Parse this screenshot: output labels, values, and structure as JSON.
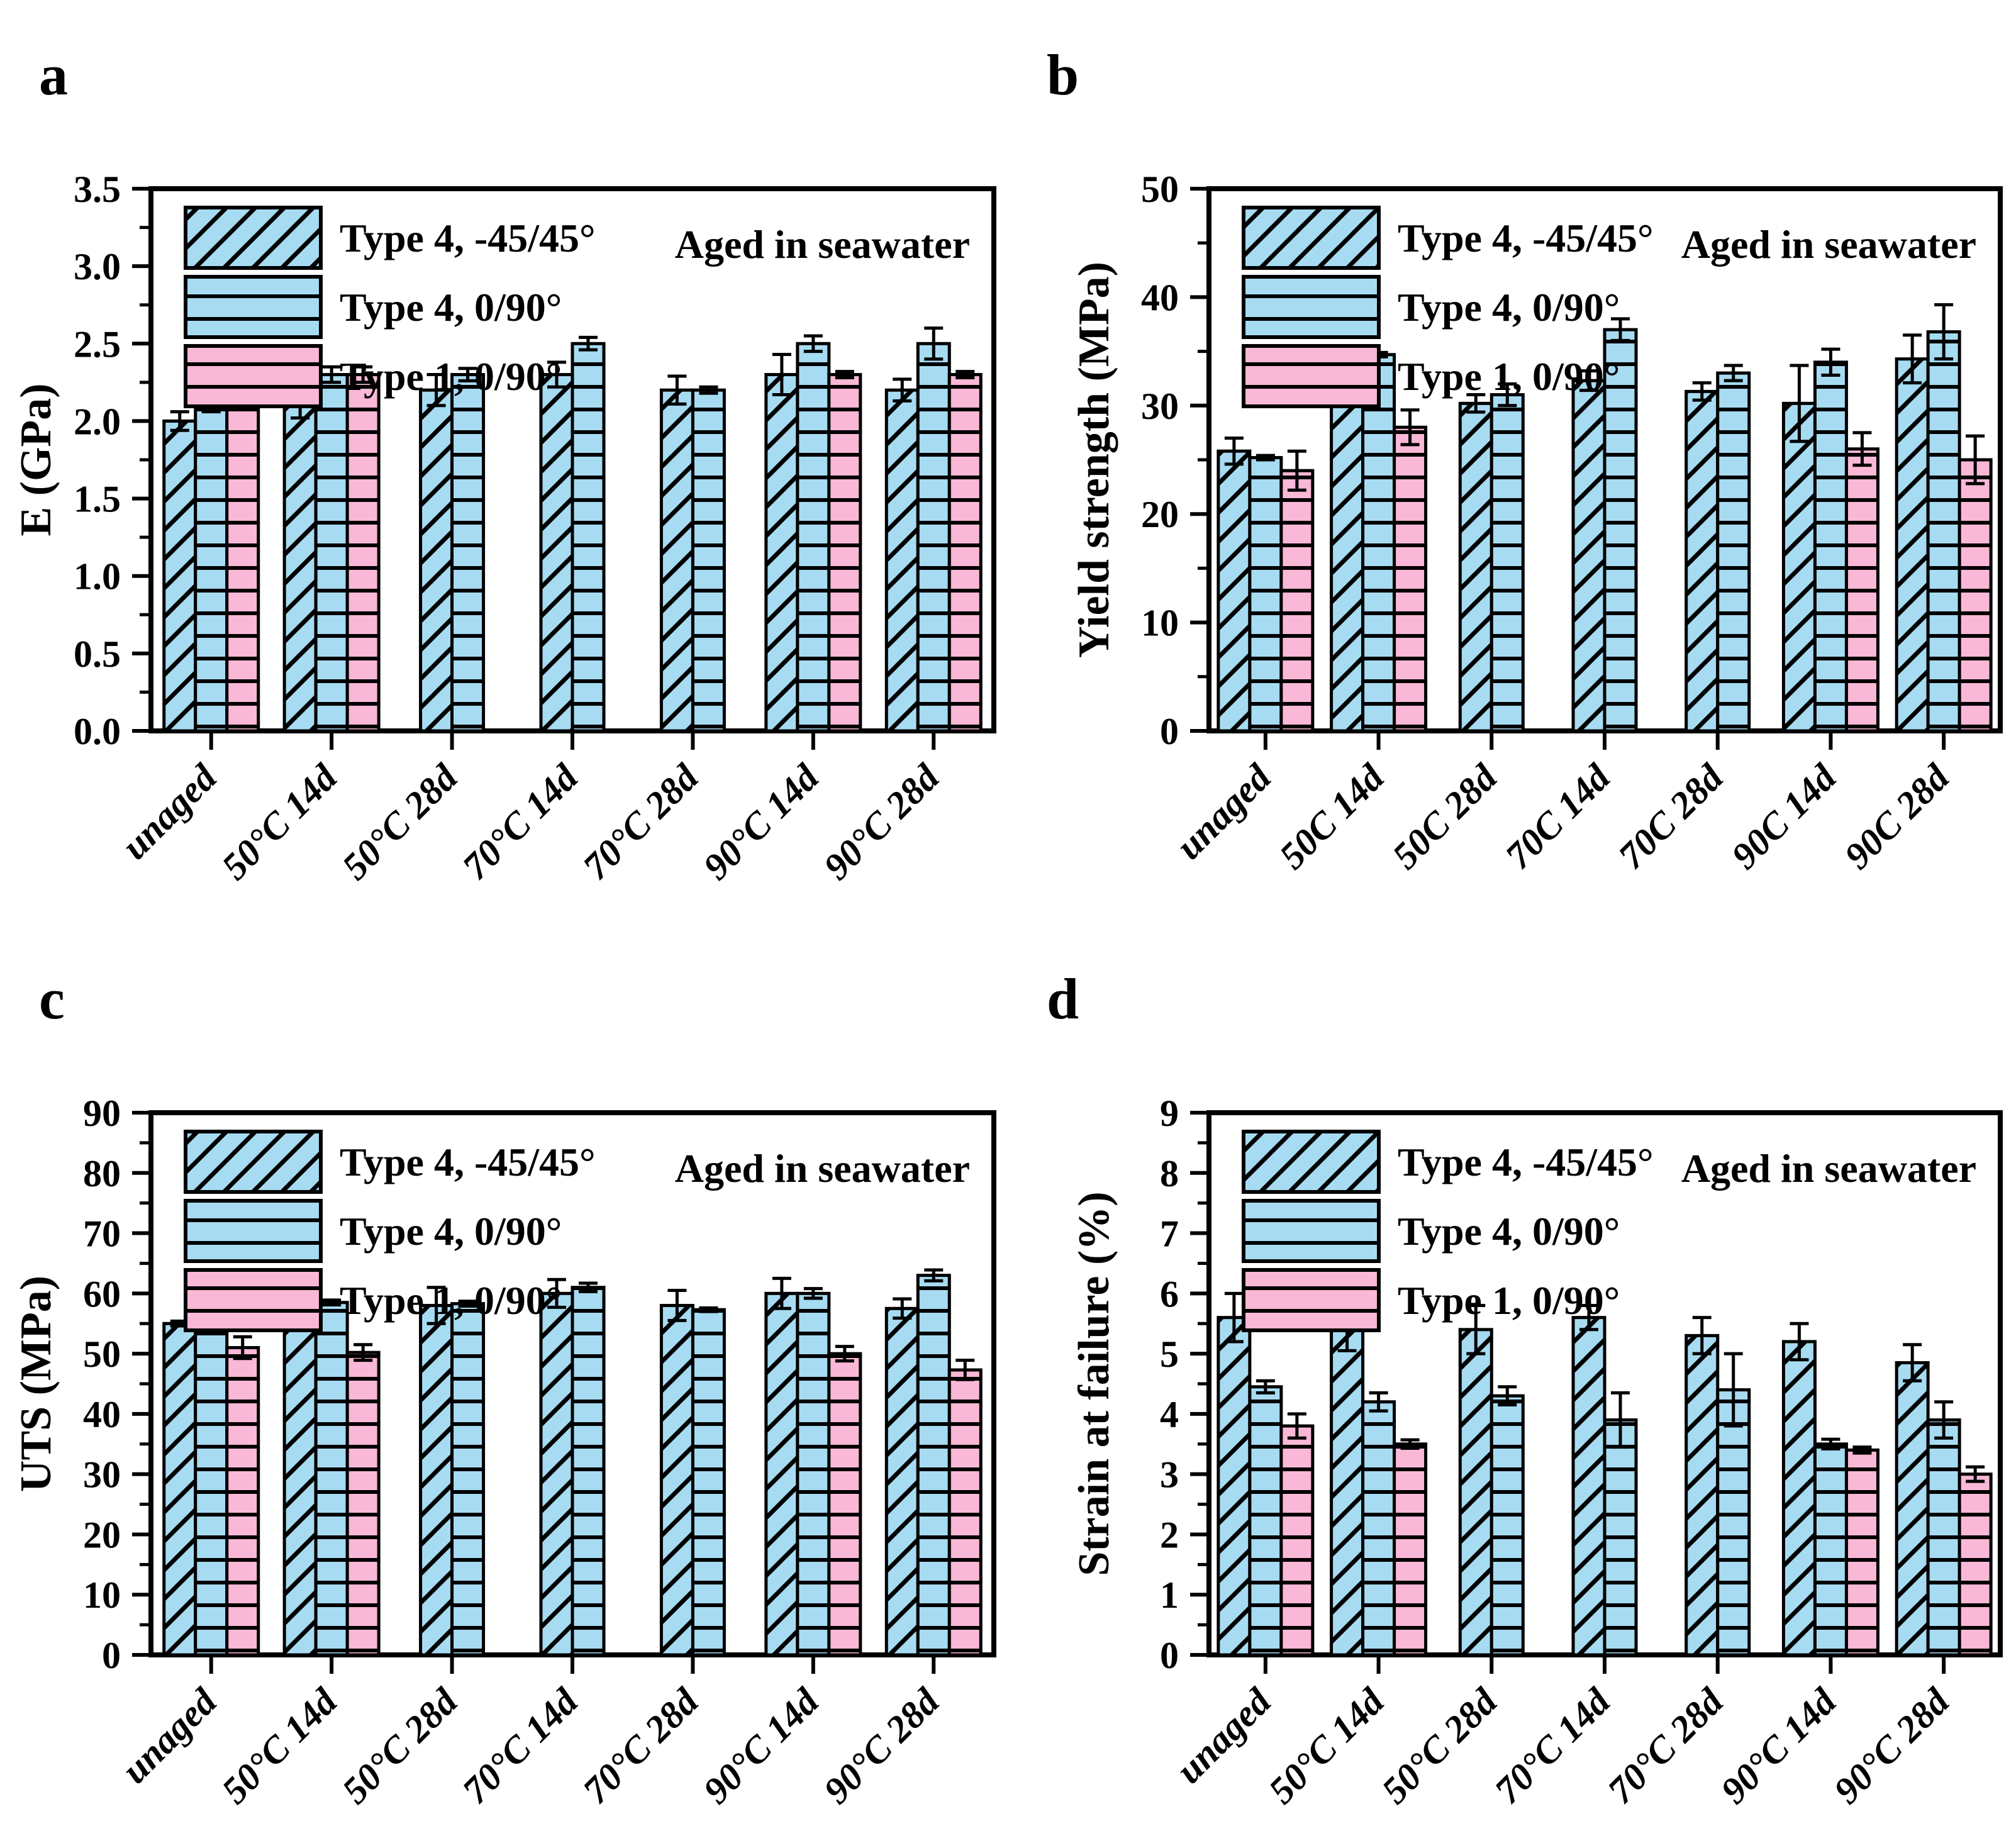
{
  "figure_title": "",
  "annotation": "Aged in seawater",
  "colors": {
    "type4_blue": "#a7dbf2",
    "type1_pink": "#f9b8d6",
    "outline": "#000000"
  },
  "chart_data": [
    {
      "type": "bar",
      "panel_label": "a",
      "ylabel": "E (GPa)",
      "annotation": "Aged in seawater",
      "ylim": [
        0,
        3.5
      ],
      "yticks": [
        0.0,
        0.5,
        1.0,
        1.5,
        2.0,
        2.5,
        3.0,
        3.5
      ],
      "ytick_labels": [
        "0.0",
        "0.5",
        "1.0",
        "1.5",
        "2.0",
        "2.5",
        "3.0",
        "3.5"
      ],
      "yminor_step": 0.25,
      "grid": false,
      "legend_position": "top-left",
      "categories": [
        "unaged",
        "50°C 14d",
        "50°C 28d",
        "70°C 14d",
        "70°C 28d",
        "90°C 14d",
        "90°C 28d"
      ],
      "series": [
        {
          "name": "Type 4, -45/45°",
          "hatch": "diagonal",
          "color": "#a7dbf2",
          "values": [
            2.0,
            2.1,
            2.2,
            2.3,
            2.2,
            2.3,
            2.2
          ],
          "errors": [
            0.06,
            0.08,
            0.1,
            0.08,
            0.09,
            0.13,
            0.07
          ]
        },
        {
          "name": "Type 4, 0/90°",
          "hatch": "horizontal",
          "color": "#a7dbf2",
          "values": [
            2.1,
            2.3,
            2.3,
            2.5,
            2.2,
            2.5,
            2.5
          ],
          "errors": [
            0.04,
            0.05,
            0.04,
            0.04,
            0.02,
            0.05,
            0.1
          ]
        },
        {
          "name": "Type 1, 0/90°",
          "hatch": "horizontal",
          "color": "#f9b8d6",
          "values": [
            2.2,
            2.3,
            null,
            null,
            null,
            2.3,
            2.3
          ],
          "errors": [
            0.03,
            0.05,
            null,
            null,
            null,
            0.02,
            0.02
          ]
        }
      ]
    },
    {
      "type": "bar",
      "panel_label": "b",
      "ylabel": "Yield strength (MPa)",
      "annotation": "Aged in seawater",
      "ylim": [
        0,
        50
      ],
      "yticks": [
        0,
        10,
        20,
        30,
        40,
        50
      ],
      "ytick_labels": [
        "0",
        "10",
        "20",
        "30",
        "40",
        "50"
      ],
      "yminor_step": 5,
      "grid": false,
      "legend_position": "top-left",
      "categories": [
        "unaged",
        "50C 14d",
        "50C 28d",
        "70C 14d",
        "70C 28d",
        "90C 14d",
        "90C 28d"
      ],
      "series": [
        {
          "name": "Type 4, -45/45°",
          "hatch": "diagonal",
          "color": "#a7dbf2",
          "values": [
            25.8,
            31.5,
            30.2,
            32.3,
            31.3,
            30.2,
            34.3
          ],
          "errors": [
            1.2,
            0.7,
            0.8,
            0.9,
            0.8,
            3.5,
            2.2
          ]
        },
        {
          "name": "Type 4, 0/90°",
          "hatch": "horizontal",
          "color": "#a7dbf2",
          "values": [
            25.2,
            34.7,
            31.0,
            37.0,
            33.0,
            34.0,
            36.8
          ],
          "errors": [
            0.2,
            0.2,
            1.0,
            1.0,
            0.7,
            1.2,
            2.5
          ]
        },
        {
          "name": "Type 1, 0/90°",
          "hatch": "horizontal",
          "color": "#f9b8d6",
          "values": [
            24.0,
            28.0,
            null,
            null,
            null,
            26.0,
            25.0
          ],
          "errors": [
            1.8,
            1.6,
            null,
            null,
            null,
            1.5,
            2.2
          ]
        }
      ]
    },
    {
      "type": "bar",
      "panel_label": "c",
      "ylabel": "UTS (MPa)",
      "annotation": "Aged in seawater",
      "ylim": [
        0,
        90
      ],
      "yticks": [
        0,
        10,
        20,
        30,
        40,
        50,
        60,
        70,
        80,
        90
      ],
      "ytick_labels": [
        "0",
        "10",
        "20",
        "30",
        "40",
        "50",
        "60",
        "70",
        "80",
        "90"
      ],
      "yminor_step": 5,
      "grid": false,
      "legend_position": "top-left",
      "categories": [
        "unaged",
        "50°C 14d",
        "50°C 28d",
        "70°C 14d",
        "70°C 28d",
        "90°C 14d",
        "90°C 28d"
      ],
      "series": [
        {
          "name": "Type 4, -45/45°",
          "hatch": "diagonal",
          "color": "#a7dbf2",
          "values": [
            55.0,
            56.0,
            58.0,
            60.0,
            58.0,
            60.0,
            57.5
          ],
          "errors": [
            0.4,
            1.2,
            3.0,
            2.3,
            2.5,
            2.5,
            1.6
          ]
        },
        {
          "name": "Type 4, 0/90°",
          "hatch": "horizontal",
          "color": "#a7dbf2",
          "values": [
            58.0,
            58.5,
            58.3,
            61.0,
            57.3,
            60.0,
            63.0
          ],
          "errors": [
            2.0,
            0.4,
            0.4,
            0.7,
            0.3,
            0.8,
            0.9
          ]
        },
        {
          "name": "Type 1, 0/90°",
          "hatch": "horizontal",
          "color": "#f9b8d6",
          "values": [
            51.0,
            50.2,
            null,
            null,
            null,
            50.0,
            47.3
          ],
          "errors": [
            1.8,
            1.3,
            null,
            null,
            null,
            1.2,
            1.6
          ]
        }
      ]
    },
    {
      "type": "bar",
      "panel_label": "d",
      "ylabel": "Strain at failure (%)",
      "annotation": "Aged in seawater",
      "ylim": [
        0,
        9
      ],
      "yticks": [
        0,
        1,
        2,
        3,
        4,
        5,
        6,
        7,
        8,
        9
      ],
      "ytick_labels": [
        "0",
        "1",
        "2",
        "3",
        "4",
        "5",
        "6",
        "7",
        "8",
        "9"
      ],
      "yminor_step": 0.5,
      "grid": false,
      "legend_position": "top-left",
      "categories": [
        "unaged",
        "50°C 14d",
        "50°C 28d",
        "70°C 14d",
        "70°C 28d",
        "90°C 14d",
        "90°C 28d"
      ],
      "series": [
        {
          "name": "Type 4, -45/45°",
          "hatch": "diagonal",
          "color": "#a7dbf2",
          "values": [
            5.6,
            5.55,
            5.4,
            5.6,
            5.3,
            5.2,
            4.85
          ],
          "errors": [
            0.4,
            0.5,
            0.4,
            0.2,
            0.3,
            0.3,
            0.3
          ]
        },
        {
          "name": "Type 4, 0/90°",
          "hatch": "horizontal",
          "color": "#a7dbf2",
          "values": [
            4.45,
            4.2,
            4.3,
            3.9,
            4.4,
            3.5,
            3.9
          ],
          "errors": [
            0.1,
            0.15,
            0.15,
            0.45,
            0.6,
            0.08,
            0.3
          ]
        },
        {
          "name": "Type 1, 0/90°",
          "hatch": "horizontal",
          "color": "#f9b8d6",
          "values": [
            3.8,
            3.5,
            null,
            null,
            null,
            3.4,
            3.0
          ],
          "errors": [
            0.2,
            0.07,
            null,
            null,
            null,
            0.05,
            0.12
          ]
        }
      ]
    }
  ]
}
